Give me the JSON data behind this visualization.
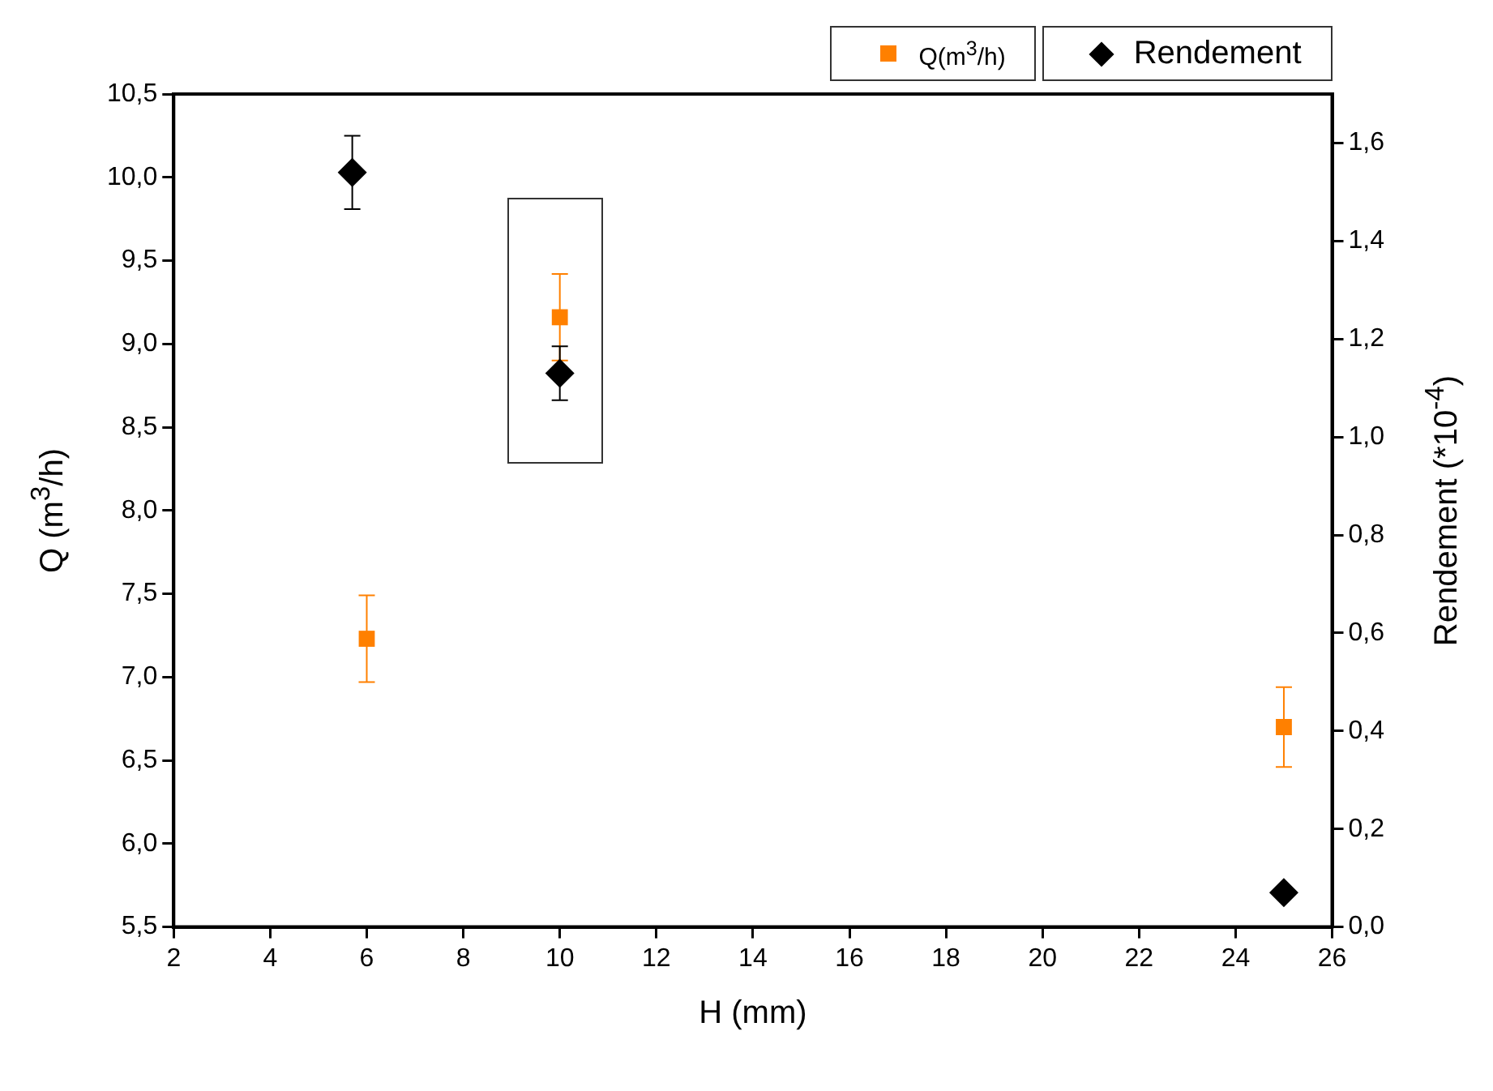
{
  "chart_data": {
    "type": "scatter",
    "xlabel": "H (mm)",
    "ylabel": "Q (m$^{3}$/h)",
    "y2label": "Rendement (*10$^{-4}$)",
    "xlim": [
      2,
      26
    ],
    "xticks": [
      2,
      4,
      6,
      8,
      10,
      12,
      14,
      16,
      18,
      20,
      22,
      24,
      26
    ],
    "ylim": [
      5.5,
      10.5
    ],
    "yticks": [
      {
        "value": 5.5,
        "label": "5,5"
      },
      {
        "value": 6.0,
        "label": "6,0"
      },
      {
        "value": 6.5,
        "label": "6,5"
      },
      {
        "value": 7.0,
        "label": "7,0"
      },
      {
        "value": 7.5,
        "label": "7,5"
      },
      {
        "value": 8.0,
        "label": "8,0"
      },
      {
        "value": 8.5,
        "label": "8,5"
      },
      {
        "value": 9.0,
        "label": "9,0"
      },
      {
        "value": 9.5,
        "label": "9,5"
      },
      {
        "value": 10.0,
        "label": "10,0"
      },
      {
        "value": 10.5,
        "label": "10,5"
      }
    ],
    "y2lim": [
      0,
      1.7
    ],
    "y2ticks": [
      {
        "value": 0,
        "label": "0,0"
      },
      {
        "value": 0.2,
        "label": "0,2"
      },
      {
        "value": 0.4,
        "label": "0,4"
      },
      {
        "value": 0.6,
        "label": "0,6"
      },
      {
        "value": 0.8,
        "label": "0,8"
      },
      {
        "value": 1.0,
        "label": "1,0"
      },
      {
        "value": 1.2,
        "label": "1,2"
      },
      {
        "value": 1.4,
        "label": "1,4"
      },
      {
        "value": 1.6,
        "label": "1,6"
      }
    ],
    "grid": false,
    "legend": "top right",
    "series": [
      {
        "name": "Q(m$^{3}$/h)",
        "color": "#ff8000",
        "marker": "square",
        "x": [
          6,
          10,
          25
        ],
        "values": [
          7.23,
          9.16,
          6.7
        ],
        "errors": [
          0.26,
          0.26,
          0.24
        ]
      },
      {
        "name": "Rendement",
        "color": "#000000",
        "marker": "diamond",
        "axis": "y2",
        "x": [
          5.7,
          10,
          25
        ],
        "values": [
          1.54,
          1.13,
          0.07
        ],
        "errors": [
          0.075,
          0.055,
          null
        ]
      }
    ]
  }
}
